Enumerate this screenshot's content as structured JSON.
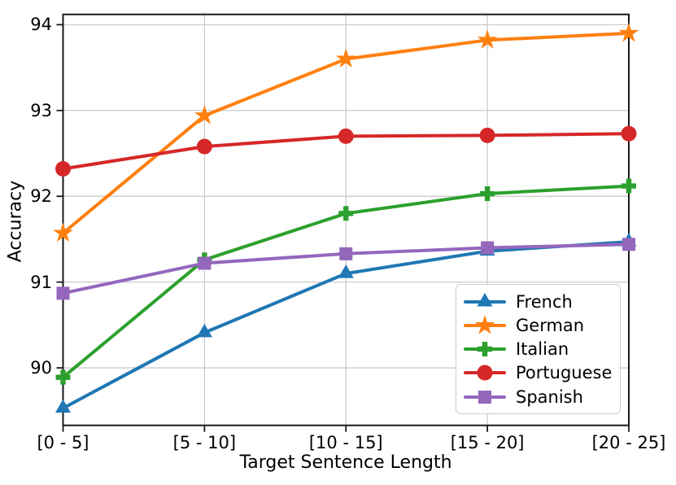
{
  "chart_data": {
    "type": "line",
    "title": "",
    "xlabel": "Target Sentence Length",
    "ylabel": "Accuracy",
    "categories": [
      "[0 - 5]",
      "[5 - 10]",
      "[10 - 15]",
      "[15 - 20]",
      "[20 - 25]"
    ],
    "yticks": [
      "90",
      "91",
      "92",
      "93",
      "94"
    ],
    "ylim": [
      89.33,
      94.12
    ],
    "grid": true,
    "grid_color": "#cccccc",
    "spine_color": "#1a1a1a",
    "legend_position": "lower-right-inside",
    "series": [
      {
        "name": "French",
        "color": "#1f77b4",
        "marker": "triangle",
        "values": [
          89.53,
          90.41,
          91.1,
          91.36,
          91.47
        ]
      },
      {
        "name": "German",
        "color": "#ff7f0e",
        "marker": "star",
        "values": [
          91.57,
          92.94,
          93.6,
          93.82,
          93.9
        ]
      },
      {
        "name": "Italian",
        "color": "#2ca02c",
        "marker": "plus",
        "values": [
          89.89,
          91.26,
          91.8,
          92.03,
          92.12
        ]
      },
      {
        "name": "Portuguese",
        "color": "#d62728",
        "marker": "circle",
        "values": [
          92.32,
          92.58,
          92.7,
          92.71,
          92.73
        ]
      },
      {
        "name": "Spanish",
        "color": "#9467bd",
        "marker": "square",
        "values": [
          90.87,
          91.22,
          91.33,
          91.4,
          91.44
        ]
      }
    ]
  }
}
